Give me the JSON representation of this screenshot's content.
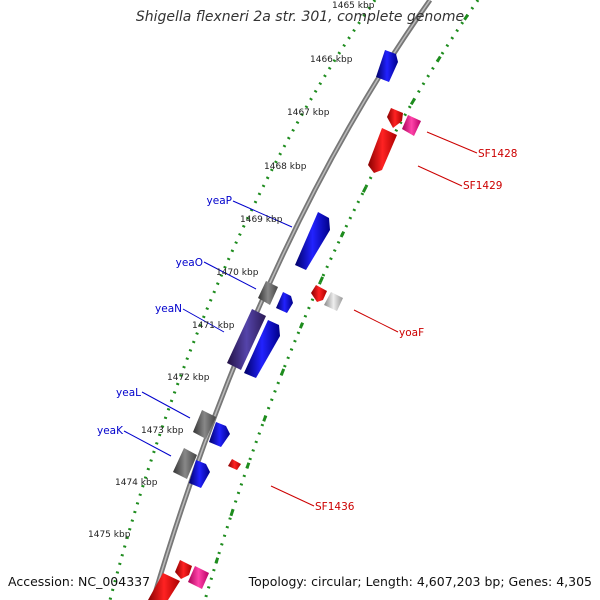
{
  "title": "Shigella flexneri 2a str. 301, complete genome",
  "accession": "Accession: NC_004337",
  "topology": "Topology: circular; Length: 4,607,203 bp; Genes: 4,305",
  "kbp_labels": [
    "1465 kbp",
    "1466 kbp",
    "1467 kbp",
    "1468 kbp",
    "1469 kbp",
    "1470 kbp",
    "1471 kbp",
    "1472 kbp",
    "1473 kbp",
    "1474 kbp",
    "1475 kbp"
  ],
  "gene_labels": {
    "left": [
      "yeaP",
      "yeaO",
      "yeaN",
      "yeaL",
      "yeaK"
    ],
    "right": [
      "SF1428",
      "SF1429",
      "yoaF",
      "SF1436"
    ]
  },
  "colors": {
    "backbone": "#7a7a7a",
    "ticks": "#1e8c1e",
    "forward_gene": "#0000ee",
    "reverse_gene": "#ee0000",
    "left_label": "#0000cc",
    "right_label": "#cc0000",
    "pink_gene": "#ee2299",
    "gray_gene": "#666666",
    "light_gray_gene": "#bbbbbb",
    "purple_gene": "#443388"
  }
}
